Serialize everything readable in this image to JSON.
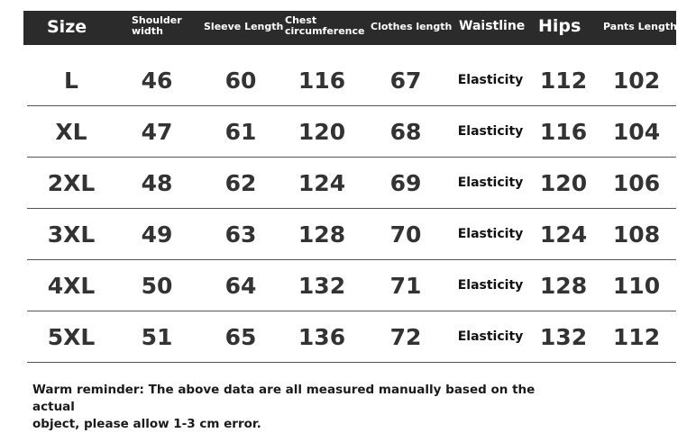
{
  "headers": {
    "size": "Size",
    "shoulder": [
      "Shoulder",
      "width"
    ],
    "sleeve": "Sleeve Length",
    "chest": [
      "Chest",
      "circumference"
    ],
    "clothes": "Clothes length",
    "waist": "Waistline",
    "hips": "Hips",
    "pants": "Pants Length"
  },
  "rows": [
    {
      "size": "L",
      "shoulder": "46",
      "sleeve": "60",
      "chest": "116",
      "clothes": "67",
      "waist": "Elasticity",
      "hips": "112",
      "pants": "102"
    },
    {
      "size": "XL",
      "shoulder": "47",
      "sleeve": "61",
      "chest": "120",
      "clothes": "68",
      "waist": "Elasticity",
      "hips": "116",
      "pants": "104"
    },
    {
      "size": "2XL",
      "shoulder": "48",
      "sleeve": "62",
      "chest": "124",
      "clothes": "69",
      "waist": "Elasticity",
      "hips": "120",
      "pants": "106"
    },
    {
      "size": "3XL",
      "shoulder": "49",
      "sleeve": "63",
      "chest": "128",
      "clothes": "70",
      "waist": "Elasticity",
      "hips": "124",
      "pants": "108"
    },
    {
      "size": "4XL",
      "shoulder": "50",
      "sleeve": "64",
      "chest": "132",
      "clothes": "71",
      "waist": "Elasticity",
      "hips": "128",
      "pants": "110"
    },
    {
      "size": "5XL",
      "shoulder": "51",
      "sleeve": "65",
      "chest": "136",
      "clothes": "72",
      "waist": "Elasticity",
      "hips": "132",
      "pants": "112"
    }
  ],
  "note": [
    "Warm reminder: The above data are all measured manually based on the actual",
    "object, please allow 1-3 cm error."
  ],
  "colors": {
    "header_bg": "#2b2b2b",
    "header_text": "#ffffff",
    "row_line": "#555555"
  }
}
